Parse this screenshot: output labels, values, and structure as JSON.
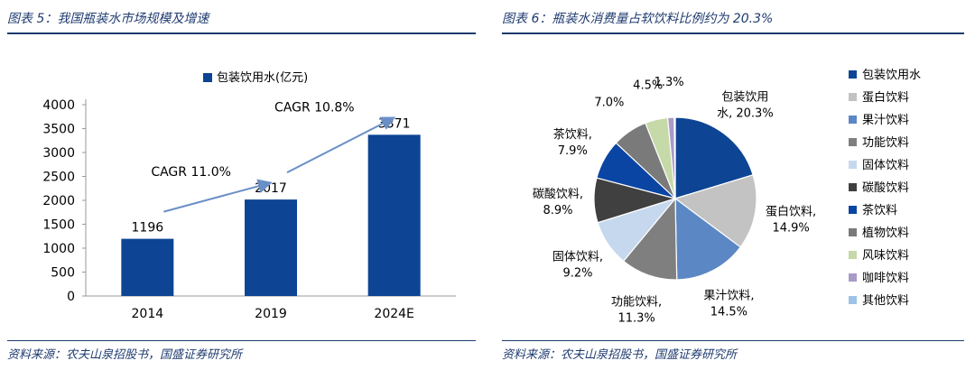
{
  "left_panel": {
    "fig_title": "图表 5：我国瓶装水市场规模及增速",
    "source": "资料来源：农夫山泉招股书，国盛证券研究所"
  },
  "right_panel": {
    "fig_title": "图表 6：瓶装水消费量占软饮料比例约为 20.3%",
    "source": "资料来源：农夫山泉招股书，国盛证券研究所"
  },
  "colors": {
    "title_blue": "#1f3b70",
    "bar": "#0d4594",
    "arrow": "#6a8fc7"
  },
  "chart_data": [
    {
      "type": "bar",
      "categories": [
        "2014",
        "2019",
        "2024E"
      ],
      "series": [
        {
          "name": "包装饮用水(亿元)",
          "values": [
            1196,
            2017,
            3371
          ],
          "color": "#0d4594"
        }
      ],
      "data_labels": [
        "1196",
        "2017",
        "3371"
      ],
      "yticks": [
        0,
        500,
        1000,
        1500,
        2000,
        2500,
        3000,
        3500,
        4000
      ],
      "ylim": [
        0,
        4000
      ],
      "legend_position": "top-center",
      "grid": false,
      "annotations": [
        {
          "text": "CAGR 11.0%",
          "from": "2014",
          "to": "2019"
        },
        {
          "text": "CAGR 10.8%",
          "from": "2019",
          "to": "2024E"
        }
      ]
    },
    {
      "type": "pie",
      "legend_position": "right",
      "slices": [
        {
          "name": "包装饮用水",
          "value": 20.3,
          "color": "#0d4594",
          "label_lines": [
            "包装饮用",
            "水, 20.3%"
          ]
        },
        {
          "name": "蛋白饮料",
          "value": 14.9,
          "color": "#c3c3c3",
          "label_lines": [
            "蛋白饮料,",
            "14.9%"
          ]
        },
        {
          "name": "果汁饮料",
          "value": 14.5,
          "color": "#5b87c5",
          "label_lines": [
            "果汁饮料,",
            "14.5%"
          ]
        },
        {
          "name": "功能饮料",
          "value": 11.3,
          "color": "#7f7f7f",
          "label_lines": [
            "功能饮料,",
            "11.3%"
          ]
        },
        {
          "name": "固体饮料",
          "value": 9.2,
          "color": "#c6d8ee",
          "label_lines": [
            "固体饮料,",
            "9.2%"
          ]
        },
        {
          "name": "碳酸饮料",
          "value": 8.9,
          "color": "#404040",
          "label_lines": [
            "碳酸饮料,",
            "8.9%"
          ]
        },
        {
          "name": "茶饮料",
          "value": 7.9,
          "color": "#0a45a3",
          "label_lines": [
            "茶饮料,",
            "7.9%"
          ]
        },
        {
          "name": "植物饮料",
          "value": 7.0,
          "color": "#7a7a7a",
          "label_lines": [
            "7.0%"
          ]
        },
        {
          "name": "风味饮料",
          "value": 4.5,
          "color": "#c6d9a8",
          "label_lines": [
            "4.5%"
          ]
        },
        {
          "name": "咖啡饮料",
          "value": 1.3,
          "color": "#a99ac8",
          "label_lines": [
            "1.3%"
          ]
        },
        {
          "name": "其他饮料",
          "value": 0.2,
          "color": "#9dc3e6",
          "label_lines": []
        }
      ]
    }
  ]
}
